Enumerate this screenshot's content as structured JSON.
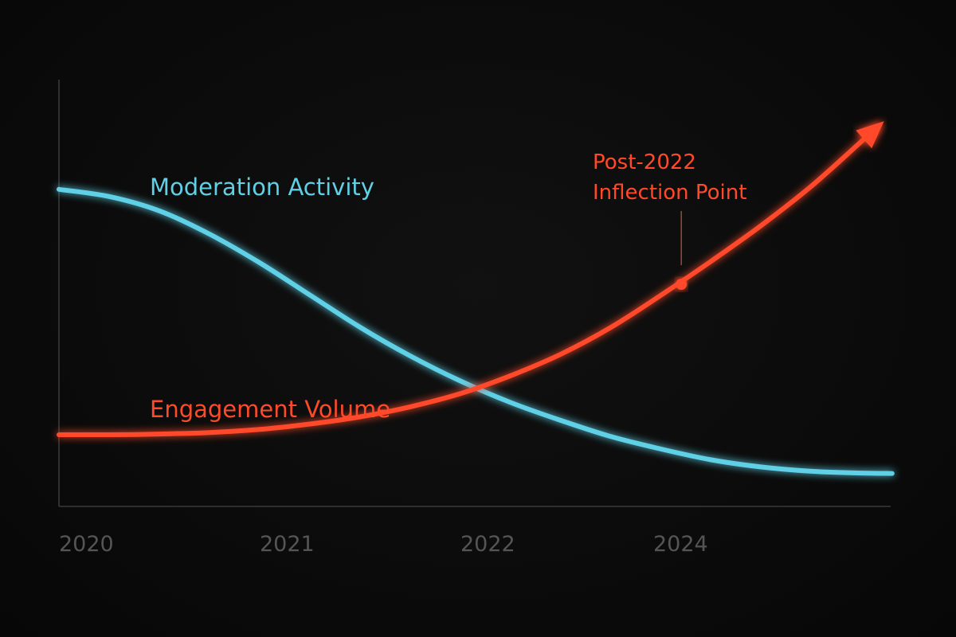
{
  "chart_data": {
    "type": "line",
    "title": "",
    "xlabel": "",
    "ylabel": "",
    "x_ticks": [
      "2020",
      "2021",
      "2022",
      "2024"
    ],
    "xlim": [
      0,
      4.15
    ],
    "ylim": [
      0,
      100
    ],
    "grid": false,
    "series": [
      {
        "name": "Moderation Activity",
        "color": "#5fd0e6",
        "x": [
          0,
          0.25,
          0.5,
          0.75,
          1.0,
          1.25,
          1.5,
          1.75,
          2.0,
          2.25,
          2.5,
          2.75,
          3.0,
          3.25,
          3.5,
          3.75,
          4.0,
          4.15
        ],
        "values": [
          80.5,
          78.5,
          74.5,
          68,
          60,
          51,
          42,
          34,
          27,
          21,
          16,
          11.5,
          8,
          5,
          3,
          1.8,
          1.3,
          1.2
        ]
      },
      {
        "name": "Engagement Volume",
        "color": "#ff4a2a",
        "x": [
          0,
          0.25,
          0.5,
          0.75,
          1.0,
          1.25,
          1.5,
          1.75,
          2.0,
          2.25,
          2.5,
          2.75,
          3.0,
          3.25,
          3.5,
          3.75,
          4.0,
          4.08
        ],
        "values": [
          12,
          12,
          12.2,
          12.6,
          13.5,
          15,
          17,
          19.8,
          23.5,
          28.5,
          34.5,
          42,
          51,
          60.5,
          70.5,
          81.5,
          94,
          98
        ]
      }
    ],
    "annotations": [
      {
        "lines": [
          "Post-2022",
          "Inflection Point"
        ],
        "x": 3.1,
        "y": 54,
        "color": "#ff4a2a"
      }
    ]
  }
}
